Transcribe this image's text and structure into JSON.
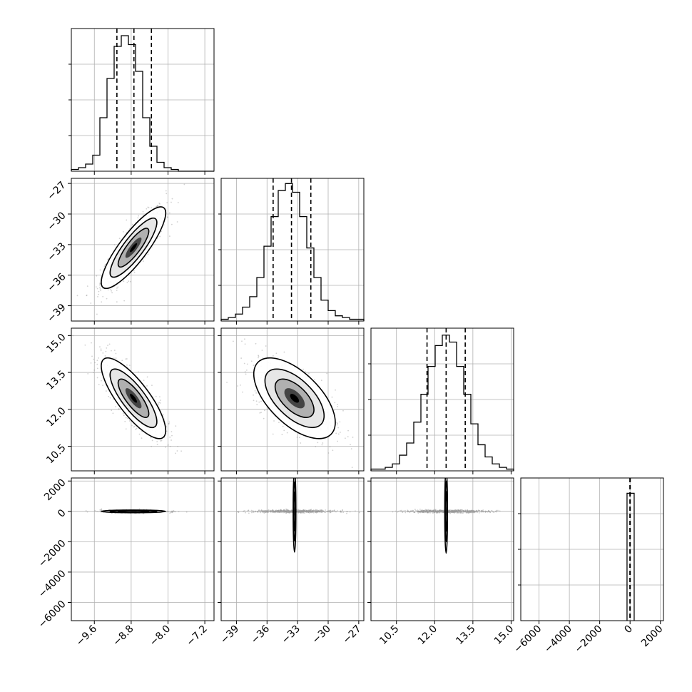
{
  "figure": {
    "description_type": "corner-plot",
    "colors": {
      "axes": "#000000",
      "grid": "#b0b0b0",
      "points": "#9a9a9a",
      "quantile_line": "#000000"
    }
  },
  "chart_data": [
    {
      "type": "histogram",
      "panel": "p0-0",
      "variable_index": 0,
      "xlim": [
        -10.1,
        -7.0
      ],
      "xticks": [
        -9.6,
        -8.8,
        -8.0,
        -7.2
      ],
      "bin_start": -10.1,
      "bin_width": 0.155,
      "values": [
        1,
        2,
        4,
        9,
        30,
        52,
        70,
        76,
        71,
        56,
        30,
        14,
        5,
        2,
        1,
        0,
        0,
        0,
        0,
        0
      ],
      "ymax": 80,
      "quantiles": [
        -9.11,
        -8.74,
        -8.36
      ]
    },
    {
      "type": "scatter-density",
      "panel": "p1-0",
      "x_var": 0,
      "y_var": 1,
      "xlim": [
        -10.1,
        -7.0
      ],
      "ylim": [
        -40.5,
        -26.5
      ],
      "xticks": [
        -9.6,
        -8.8,
        -8.0,
        -7.2
      ],
      "yticks": [
        -27,
        -30,
        -33,
        -36,
        -39
      ],
      "center": [
        -8.75,
        -33.3
      ],
      "sd": [
        0.35,
        2.0
      ],
      "corr": 0.85
    },
    {
      "type": "histogram",
      "panel": "p1-1",
      "variable_index": 1,
      "xlim": [
        -40.5,
        -26.5
      ],
      "xticks": [
        -39,
        -36,
        -33,
        -30,
        -27
      ],
      "bin_start": -40.5,
      "bin_width": 0.7,
      "values": [
        1,
        2,
        4,
        8,
        14,
        25,
        43,
        60,
        75,
        79,
        74,
        60,
        42,
        25,
        12,
        6,
        3,
        2,
        1,
        1
      ],
      "ymax": 82,
      "quantiles": [
        -35.4,
        -33.6,
        -31.7
      ]
    },
    {
      "type": "scatter-density",
      "panel": "p2-0",
      "x_var": 0,
      "y_var": 2,
      "xlim": [
        -10.1,
        -7.0
      ],
      "ylim": [
        9.5,
        15.3
      ],
      "xticks": [
        -9.6,
        -8.8,
        -8.0,
        -7.2
      ],
      "yticks": [
        15.0,
        13.5,
        12.0,
        10.5
      ],
      "center": [
        -8.75,
        12.45
      ],
      "sd": [
        0.35,
        0.82
      ],
      "corr": -0.8
    },
    {
      "type": "scatter-density",
      "panel": "p2-1",
      "x_var": 1,
      "y_var": 2,
      "xlim": [
        -40.5,
        -26.5
      ],
      "ylim": [
        9.5,
        15.3
      ],
      "xticks": [
        -39,
        -36,
        -33,
        -30,
        -27
      ],
      "yticks": [
        15.0,
        13.5,
        12.0,
        10.5
      ],
      "center": [
        -33.3,
        12.45
      ],
      "sd": [
        2.0,
        0.82
      ],
      "corr": -0.6
    },
    {
      "type": "histogram",
      "panel": "p2-2",
      "variable_index": 2,
      "xlim": [
        9.5,
        15.1
      ],
      "xticks": [
        10.5,
        12.0,
        13.5,
        15.0
      ],
      "bin_start": 9.5,
      "bin_width": 0.28,
      "values": [
        1,
        1,
        2,
        4,
        9,
        16,
        28,
        44,
        60,
        72,
        78,
        74,
        60,
        44,
        27,
        15,
        8,
        4,
        2,
        1
      ],
      "ymax": 82,
      "quantiles": [
        11.7,
        12.45,
        13.2
      ]
    },
    {
      "type": "scatter-density",
      "panel": "p3-0",
      "x_var": 0,
      "y_var": 3,
      "xlim": [
        -10.1,
        -7.0
      ],
      "ylim": [
        -7200,
        2200
      ],
      "xticks": [
        -9.6,
        -8.8,
        -8.0,
        -7.2
      ],
      "yticks": [
        2000,
        0,
        -2000,
        -4000,
        -6000
      ],
      "center": [
        -8.75,
        0
      ],
      "sd": [
        0.35,
        45
      ],
      "corr": 0
    },
    {
      "type": "scatter-density",
      "panel": "p3-1",
      "x_var": 1,
      "y_var": 3,
      "xlim": [
        -40.5,
        -26.5
      ],
      "ylim": [
        -7200,
        2200
      ],
      "xticks": [
        -39,
        -36,
        -33,
        -30,
        -27
      ],
      "yticks": [
        2000,
        0,
        -2000,
        -4000,
        -6000
      ],
      "center": [
        -33.3,
        0
      ],
      "sd": [
        2.0,
        45
      ],
      "corr": 0
    },
    {
      "type": "scatter-density",
      "panel": "p3-2",
      "x_var": 2,
      "y_var": 3,
      "xlim": [
        9.5,
        15.1
      ],
      "ylim": [
        -7200,
        2200
      ],
      "xticks": [
        10.5,
        12.0,
        13.5,
        15.0
      ],
      "yticks": [
        2000,
        0,
        -2000,
        -4000,
        -6000
      ],
      "center": [
        12.45,
        0
      ],
      "sd": [
        0.82,
        45
      ],
      "corr": 0
    },
    {
      "type": "histogram",
      "panel": "p3-3",
      "variable_index": 3,
      "xlim": [
        -7200,
        2200
      ],
      "xticks": [
        -6000,
        -4000,
        -2000,
        0,
        2000
      ],
      "bin_start": -200,
      "bin_width": 470,
      "values": [
        100
      ],
      "ymax": 112,
      "quantiles": [
        -10,
        0,
        10
      ]
    }
  ],
  "tick_labels": {
    "row1_y": [
      "−27",
      "−30",
      "−33",
      "−36",
      "−39"
    ],
    "row2_y": [
      "15.0",
      "13.5",
      "12.0",
      "10.5"
    ],
    "row3_y": [
      "2000",
      "0",
      "−2000",
      "−4000",
      "−6000"
    ],
    "col0_x": [
      "−9.6",
      "−8.8",
      "−8.0",
      "−7.2"
    ],
    "col1_x": [
      "−39",
      "−36",
      "−33",
      "−30",
      "−27"
    ],
    "col2_x": [
      "10.5",
      "12.0",
      "13.5",
      "15.0"
    ],
    "col3_x": [
      "−6000",
      "−4000",
      "−2000",
      "0",
      "2000"
    ]
  }
}
